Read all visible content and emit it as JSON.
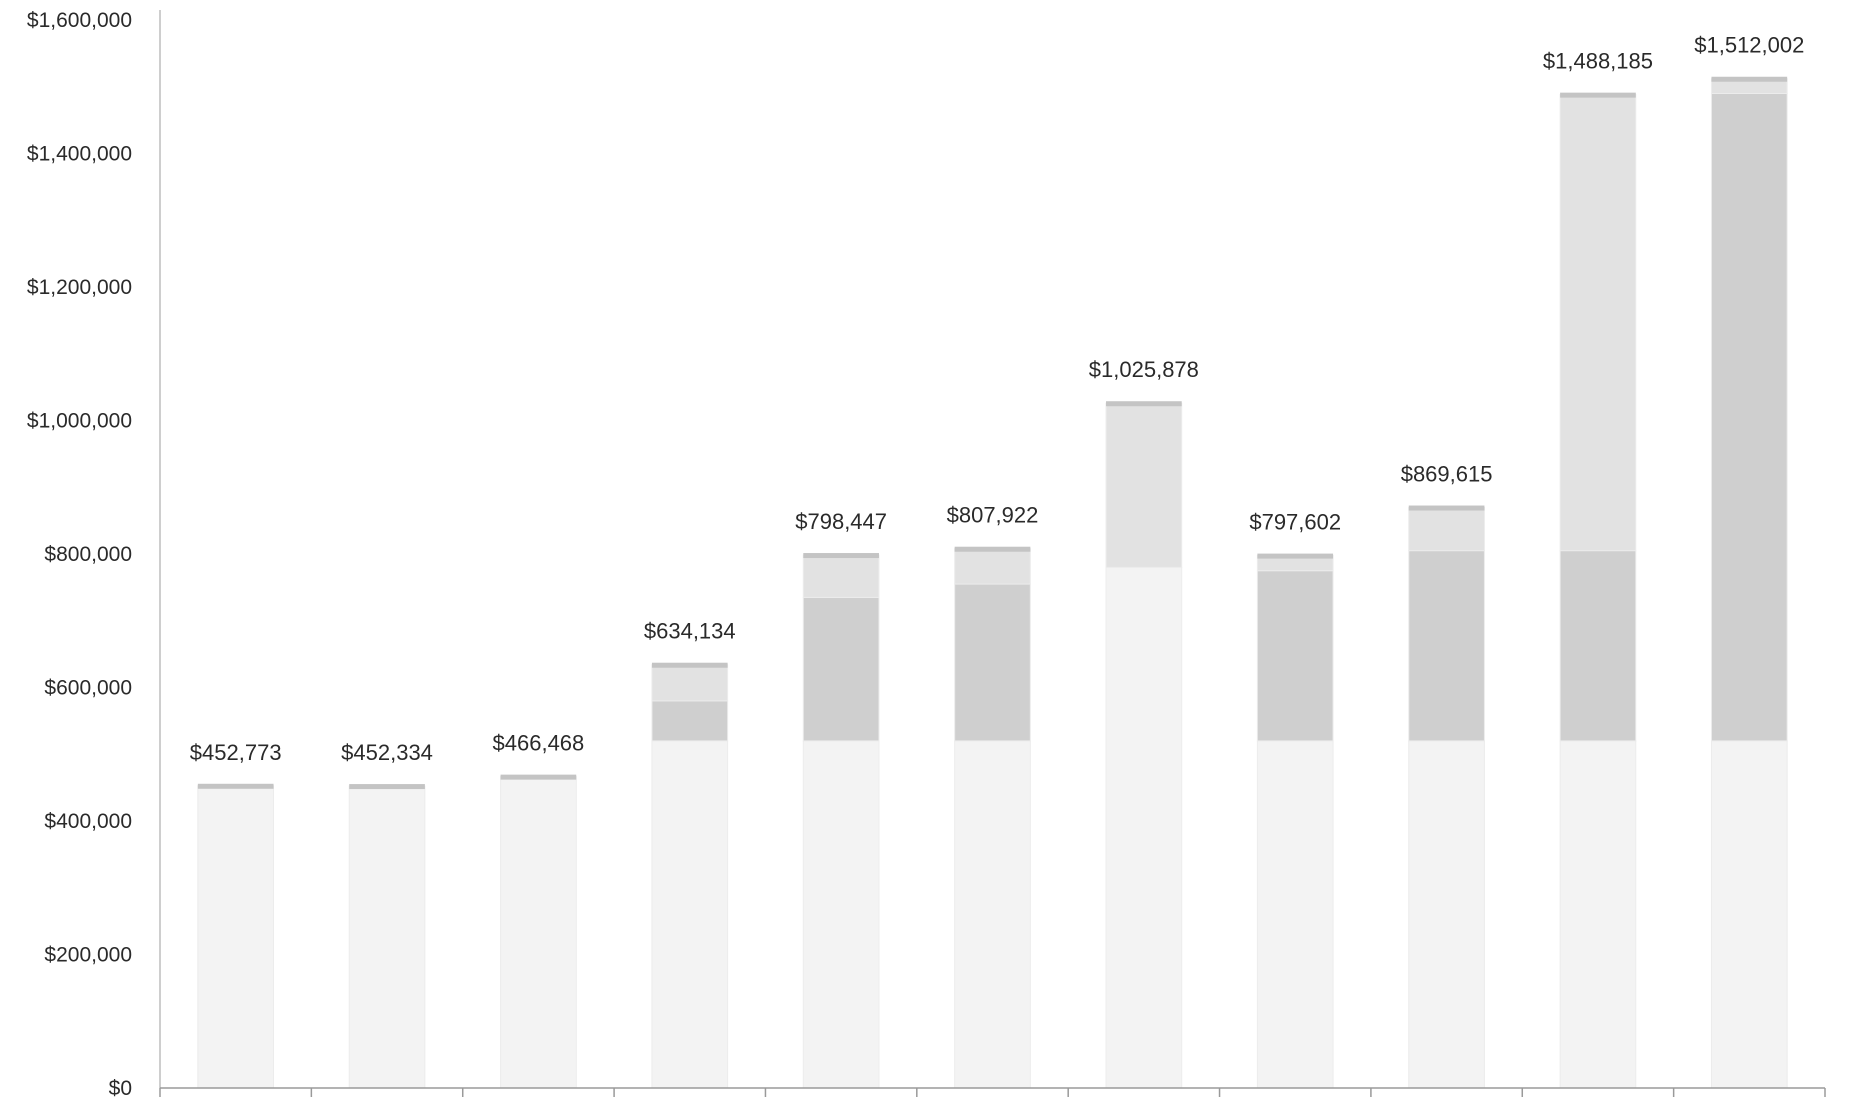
{
  "chart_data": {
    "type": "bar",
    "title": "",
    "xlabel": "",
    "ylabel": "",
    "ylim": [
      0,
      1600000
    ],
    "y_ticks": [
      {
        "value": 0,
        "label": "$0"
      },
      {
        "value": 200000,
        "label": "$200,000"
      },
      {
        "value": 400000,
        "label": "$400,000"
      },
      {
        "value": 600000,
        "label": "$600,000"
      },
      {
        "value": 800000,
        "label": "$800,000"
      },
      {
        "value": 1000000,
        "label": "$1,000,000"
      },
      {
        "value": 1200000,
        "label": "$1,200,000"
      },
      {
        "value": 1400000,
        "label": "$1,400,000"
      },
      {
        "value": 1600000,
        "label": "$1,600,000"
      }
    ],
    "categories": [
      "",
      "",
      "",
      "",
      "",
      "",
      "",
      "",
      "",
      "",
      ""
    ],
    "values": [
      452773,
      452334,
      466468,
      634134,
      798447,
      807922,
      1025878,
      797602,
      869615,
      1488185,
      1512002
    ],
    "data_labels": [
      "$452,773",
      "$452,334",
      "$466,468",
      "$634,134",
      "$798,447",
      "$807,922",
      "$1,025,878",
      "$797,602",
      "$869,615",
      "$1,488,185",
      "$1,512,002"
    ],
    "series": [
      {
        "values": [
          452773,
          452334,
          466468,
          520000,
          520000,
          520000,
          780000,
          520000,
          520000,
          520000,
          520000
        ],
        "color": "#f3f3f3"
      },
      {
        "values": [
          0,
          0,
          0,
          60000,
          215000,
          235000,
          0,
          255000,
          285000,
          285000,
          970000
        ],
        "color": "#cfcfcf"
      },
      {
        "values": [
          0,
          0,
          0,
          54134,
          63447,
          52922,
          245878,
          22602,
          64615,
          683185,
          22002
        ],
        "color": "#e2e2e2"
      }
    ],
    "grid": false,
    "legend": "none"
  }
}
